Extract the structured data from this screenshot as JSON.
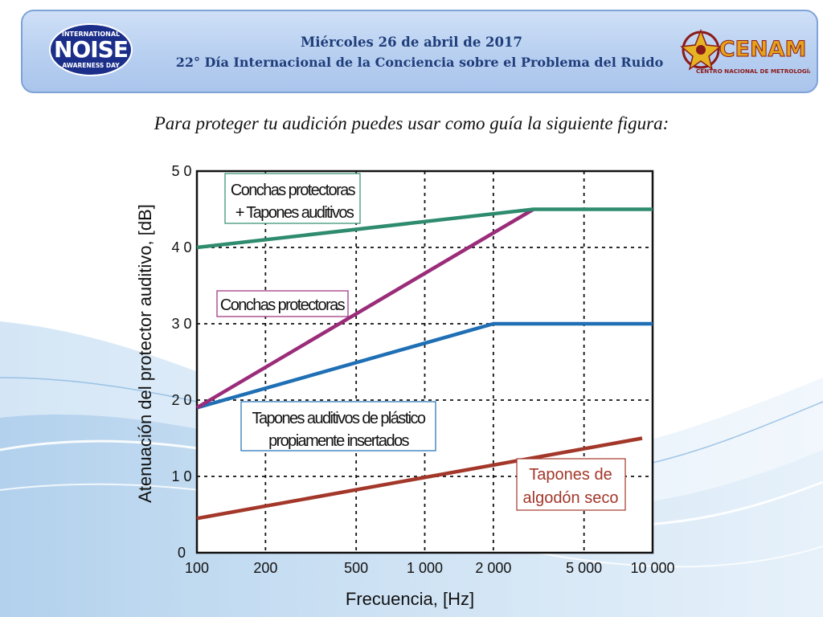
{
  "header": {
    "date": "Miércoles 26 de abril de 2017",
    "event": "22° Día Internacional de la Conciencia sobre el Problema del Ruido",
    "left_logo": {
      "icon": "international-noise-awareness-day-logo",
      "text_top": "INTERNATIONAL",
      "text_main": "NOISE",
      "text_bottom": "AWARENESS DAY"
    },
    "right_logo": {
      "icon": "cenam-logo",
      "text_main": "CENAM",
      "text_sub": "CENTRO NACIONAL DE METROLOGÍA"
    }
  },
  "caption": "Para proteger tu audición puedes usar como guía la siguiente figura:",
  "colors": {
    "banner_border": "#7fa3d8",
    "header_text": "#1f3d7a",
    "conchas_mas_tapones": "#2e8b6e",
    "conchas": "#9a2c7a",
    "tapones_plastico": "#1f6fb5",
    "tapones_algodon": "#a3372a"
  },
  "chart_data": {
    "type": "line",
    "x_scale": "log",
    "xlabel": "Frecuencia, [Hz]",
    "ylabel": "Atenuación del protector  auditivo, [dB]",
    "xlim": [
      100,
      10000
    ],
    "ylim": [
      0,
      50
    ],
    "grid": true,
    "x_ticks": [
      100,
      200,
      500,
      1000,
      2000,
      5000,
      10000
    ],
    "x_tick_labels": [
      "100",
      "200",
      "500",
      "1 000",
      "2 000",
      "5 000",
      "10 000"
    ],
    "y_ticks": [
      0,
      10,
      20,
      30,
      40,
      50
    ],
    "y_tick_labels": [
      "0",
      "1 0",
      "2 0",
      "3 0",
      "4 0",
      "5 0"
    ],
    "series": [
      {
        "key": "conchas_mas_tapones",
        "labels": [
          "Conchas protectoras",
          "+ Tapones auditivos"
        ],
        "x": [
          100,
          3000,
          10000
        ],
        "y": [
          40,
          45,
          45
        ]
      },
      {
        "key": "conchas",
        "labels": [
          "Conchas protectoras"
        ],
        "x": [
          100,
          3000
        ],
        "y": [
          19,
          45
        ]
      },
      {
        "key": "tapones_plastico",
        "labels": [
          "Tapones auditivos de plástico",
          "propiamente insertados"
        ],
        "x": [
          100,
          2000,
          10000
        ],
        "y": [
          19,
          30,
          30
        ]
      },
      {
        "key": "tapones_algodon",
        "labels": [
          "Tapones de",
          "algodón seco"
        ],
        "x": [
          100,
          9000
        ],
        "y": [
          4.5,
          15
        ]
      }
    ]
  }
}
